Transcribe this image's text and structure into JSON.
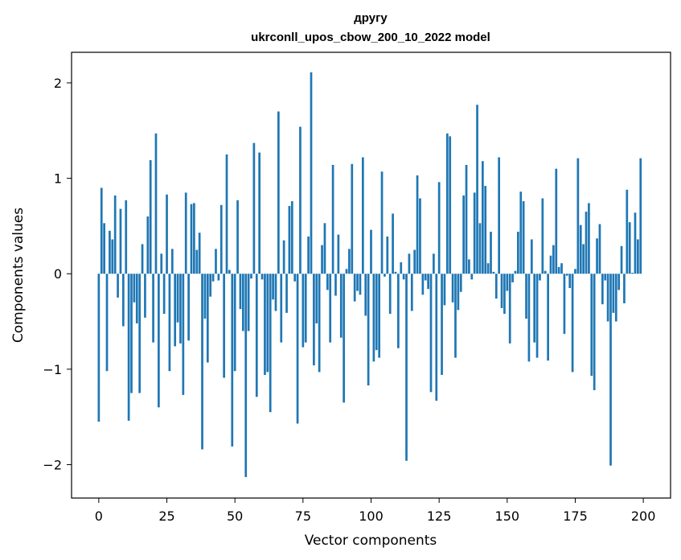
{
  "chart_data": {
    "type": "bar",
    "title": "другу",
    "subtitle": "ukrconll_upos_cbow_200_10_2022 model",
    "xlabel": "Vector components",
    "ylabel": "Components values",
    "xlim": [
      -10,
      210
    ],
    "ylim": [
      -2.35,
      2.32
    ],
    "xticks": [
      0,
      25,
      50,
      75,
      100,
      125,
      150,
      175,
      200
    ],
    "yticks": [
      -2,
      -1,
      0,
      1,
      2
    ],
    "ytick_labels": [
      "−2",
      "−1",
      "0",
      "1",
      "2"
    ],
    "grid": false,
    "bar_color": "#1f77b4",
    "x": [
      0,
      1,
      2,
      3,
      4,
      5,
      6,
      7,
      8,
      9,
      10,
      11,
      12,
      13,
      14,
      15,
      16,
      17,
      18,
      19,
      20,
      21,
      22,
      23,
      24,
      25,
      26,
      27,
      28,
      29,
      30,
      31,
      32,
      33,
      34,
      35,
      36,
      37,
      38,
      39,
      40,
      41,
      42,
      43,
      44,
      45,
      46,
      47,
      48,
      49,
      50,
      51,
      52,
      53,
      54,
      55,
      56,
      57,
      58,
      59,
      60,
      61,
      62,
      63,
      64,
      65,
      66,
      67,
      68,
      69,
      70,
      71,
      72,
      73,
      74,
      75,
      76,
      77,
      78,
      79,
      80,
      81,
      82,
      83,
      84,
      85,
      86,
      87,
      88,
      89,
      90,
      91,
      92,
      93,
      94,
      95,
      96,
      97,
      98,
      99,
      100,
      101,
      102,
      103,
      104,
      105,
      106,
      107,
      108,
      109,
      110,
      111,
      112,
      113,
      114,
      115,
      116,
      117,
      118,
      119,
      120,
      121,
      122,
      123,
      124,
      125,
      126,
      127,
      128,
      129,
      130,
      131,
      132,
      133,
      134,
      135,
      136,
      137,
      138,
      139,
      140,
      141,
      142,
      143,
      144,
      145,
      146,
      147,
      148,
      149,
      150,
      151,
      152,
      153,
      154,
      155,
      156,
      157,
      158,
      159,
      160,
      161,
      162,
      163,
      164,
      165,
      166,
      167,
      168,
      169,
      170,
      171,
      172,
      173,
      174,
      175,
      176,
      177,
      178,
      179,
      180,
      181,
      182,
      183,
      184,
      185,
      186,
      187,
      188,
      189,
      190,
      191,
      192,
      193,
      194,
      195,
      196,
      197,
      198,
      199
    ],
    "values": [
      -1.55,
      0.9,
      0.53,
      -1.02,
      0.45,
      0.36,
      0.82,
      -0.25,
      0.68,
      -0.55,
      0.77,
      -1.54,
      -1.25,
      -0.3,
      -0.52,
      -1.25,
      0.31,
      -0.46,
      0.6,
      1.19,
      -0.72,
      1.47,
      -1.4,
      0.21,
      -0.42,
      0.83,
      -1.02,
      0.26,
      -0.76,
      -0.51,
      -0.73,
      -1.27,
      0.85,
      -0.7,
      0.73,
      0.74,
      0.25,
      0.43,
      -1.84,
      -0.47,
      -0.93,
      -0.24,
      -0.08,
      0.26,
      -0.07,
      0.72,
      -1.09,
      1.25,
      0.04,
      -1.81,
      -1.02,
      0.77,
      -0.37,
      -0.6,
      -2.13,
      -0.6,
      -0.05,
      1.37,
      -1.29,
      1.27,
      -0.06,
      -1.06,
      -1.03,
      -1.45,
      -0.27,
      -0.39,
      1.7,
      -0.72,
      0.35,
      -0.41,
      0.71,
      0.76,
      -0.08,
      -1.57,
      1.54,
      -0.77,
      -0.72,
      0.39,
      2.11,
      -0.96,
      -0.52,
      -1.03,
      0.3,
      0.53,
      -0.17,
      -0.72,
      1.14,
      -0.23,
      0.41,
      -0.67,
      -1.35,
      0.05,
      0.26,
      1.15,
      -0.29,
      -0.18,
      -0.22,
      1.22,
      -0.44,
      -1.17,
      0.46,
      -0.92,
      -0.8,
      -0.88,
      1.07,
      -0.03,
      0.39,
      -0.42,
      0.63,
      0.02,
      -0.78,
      0.12,
      -0.06,
      -1.96,
      0.21,
      -0.39,
      0.25,
      1.03,
      0.79,
      -0.22,
      -0.07,
      -0.16,
      -1.24,
      0.21,
      -1.33,
      0.96,
      -1.06,
      -0.33,
      1.47,
      1.44,
      -0.3,
      -0.88,
      -0.38,
      -0.19,
      0.82,
      1.14,
      0.15,
      -0.06,
      0.85,
      1.77,
      0.53,
      1.18,
      0.92,
      0.11,
      0.44,
      0.02,
      -0.26,
      1.22,
      -0.36,
      -0.42,
      -0.18,
      -0.73,
      -0.09,
      0.03,
      0.44,
      0.86,
      0.76,
      -0.47,
      -0.92,
      0.36,
      -0.72,
      -0.88,
      -0.07,
      0.79,
      0.03,
      -0.91,
      0.19,
      0.3,
      1.1,
      0.07,
      0.11,
      -0.63,
      -0.02,
      -0.15,
      -1.03,
      0.05,
      1.21,
      0.51,
      0.31,
      0.65,
      0.74,
      -1.07,
      -1.22,
      0.37,
      0.52,
      -0.32,
      -0.07,
      -0.5,
      -2.01,
      -0.41,
      -0.5,
      -0.17,
      0.29,
      -0.31,
      0.88,
      0.54,
      0.01,
      0.64,
      0.36,
      1.21
    ]
  }
}
